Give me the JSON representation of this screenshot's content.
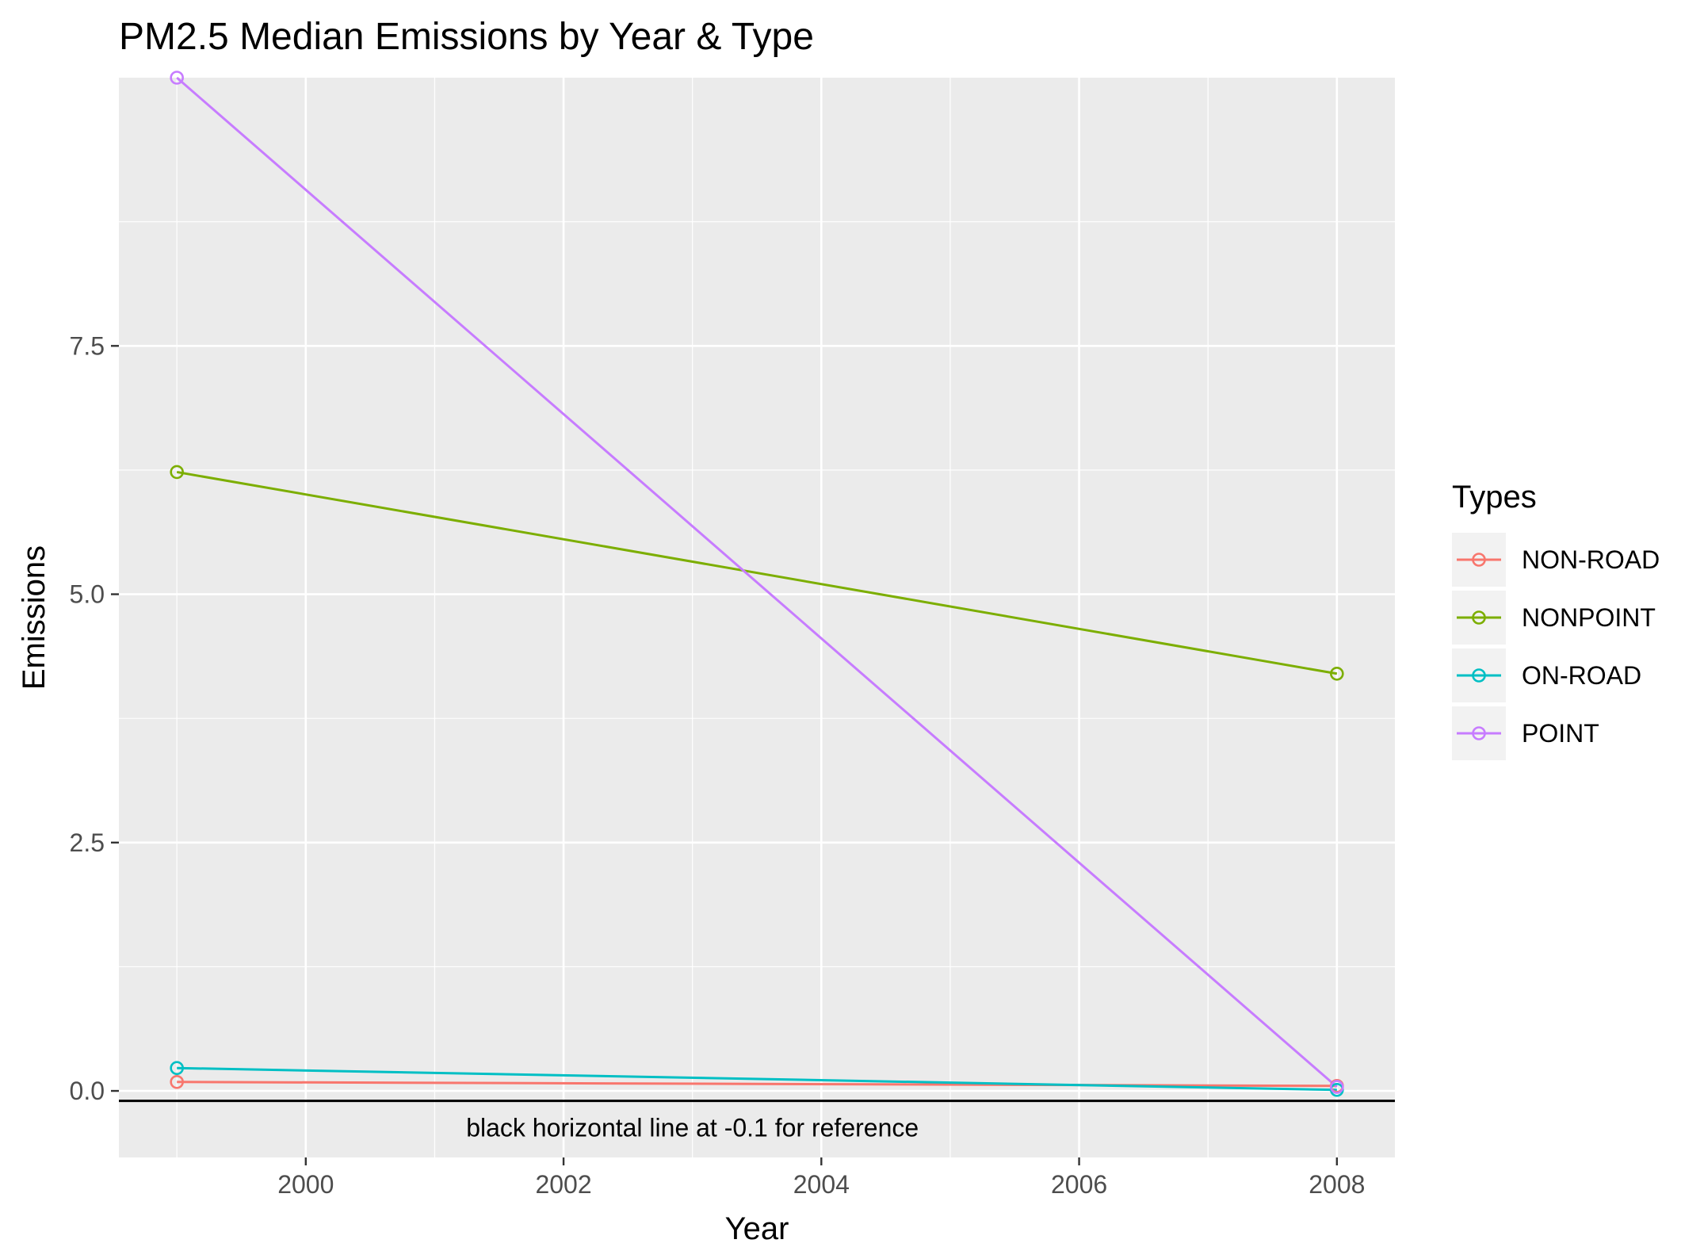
{
  "chart_data": {
    "type": "line",
    "title": "PM2.5 Median Emissions by Year & Type",
    "xlabel": "Year",
    "ylabel": "Emissions",
    "x": [
      1999,
      2008
    ],
    "xticks": [
      "2000",
      "2002",
      "2004",
      "2006",
      "2008"
    ],
    "xtick_values": [
      2000,
      2002,
      2004,
      2006,
      2008
    ],
    "yticks": [
      "0.0",
      "2.5",
      "5.0",
      "7.5"
    ],
    "ytick_values": [
      0,
      2.5,
      5,
      7.5
    ],
    "xlim": [
      1998.55,
      2008.45
    ],
    "ylim": [
      -0.67,
      10.2
    ],
    "grid": true,
    "legend": {
      "title": "Types",
      "position": "right"
    },
    "series": [
      {
        "name": "NON-ROAD",
        "color": "#F8766D",
        "values": [
          0.09,
          0.05
        ]
      },
      {
        "name": "NONPOINT",
        "color": "#7CAE00",
        "values": [
          6.23,
          4.2
        ]
      },
      {
        "name": "ON-ROAD",
        "color": "#00BFC4",
        "values": [
          0.23,
          0.01
        ]
      },
      {
        "name": "POINT",
        "color": "#C77CFF",
        "values": [
          10.2,
          0.04
        ]
      }
    ],
    "reference_line": {
      "y": -0.1,
      "color": "#000000"
    },
    "annotation": {
      "text": "black horizontal line at -0.1 for reference",
      "x": 2003.0,
      "y": -0.37
    }
  }
}
